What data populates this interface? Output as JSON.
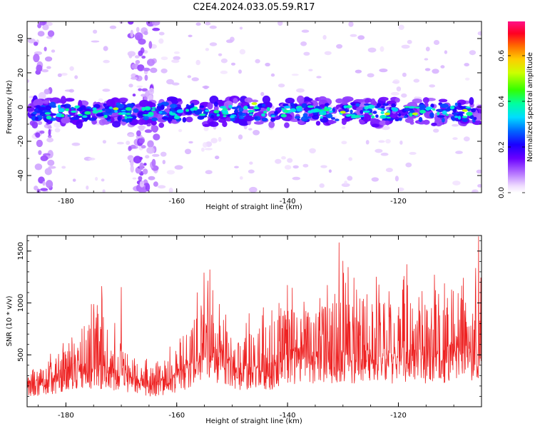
{
  "title": "C2E4.2024.033.05.59.R17",
  "chart_data": [
    {
      "type": "heatmap",
      "xlabel": "Height of straight line (km)",
      "ylabel": "Frequency (Hz)",
      "xlim": [
        -187,
        -105
      ],
      "ylim": [
        -50,
        50
      ],
      "x_ticks": [
        -180,
        -160,
        -140,
        -120
      ],
      "y_ticks": [
        -40,
        -20,
        0,
        20,
        40
      ],
      "band_center_hz": -3,
      "band_halfwidth_hz": 6,
      "colorbar": {
        "label": "Normalized spectral amplitude",
        "range": [
          0,
          0.75
        ],
        "ticks": [
          0.0,
          0.2,
          0.4,
          0.6
        ]
      },
      "vertical_streaks_km": [
        -184,
        -167,
        -165
      ]
    },
    {
      "type": "line",
      "xlabel": "Height of straight line (km)",
      "ylabel": "SNR (10 * v/v)",
      "xlim": [
        -187,
        -105
      ],
      "ylim": [
        0,
        1650
      ],
      "x_ticks": [
        -180,
        -160,
        -140,
        -120
      ],
      "y_ticks": [
        500,
        1000,
        1500
      ],
      "color": "#ee2222",
      "envelope": {
        "x": [
          -187,
          -183,
          -180,
          -177,
          -174,
          -171,
          -168,
          -165,
          -162,
          -160,
          -157,
          -155,
          -152,
          -149,
          -146,
          -143,
          -140,
          -137,
          -134,
          -131,
          -128,
          -125,
          -122,
          -119,
          -116,
          -113,
          -110,
          -107,
          -105
        ],
        "baseline": [
          180,
          200,
          280,
          300,
          290,
          260,
          220,
          180,
          190,
          250,
          320,
          420,
          380,
          300,
          280,
          300,
          380,
          400,
          360,
          380,
          390,
          380,
          400,
          420,
          400,
          400,
          420,
          440,
          460
        ],
        "peak": [
          350,
          500,
          700,
          900,
          1150,
          800,
          600,
          450,
          500,
          750,
          1050,
          1320,
          950,
          750,
          1000,
          1000,
          1200,
          1100,
          1150,
          1550,
          1250,
          1300,
          1250,
          1300,
          1200,
          1250,
          1200,
          1300,
          1640
        ]
      },
      "peaks": [
        [
          -173.5,
          1160
        ],
        [
          -170,
          1150
        ],
        [
          -154,
          1320
        ],
        [
          -140,
          1170
        ],
        [
          -130.7,
          1580
        ],
        [
          -124,
          1250
        ],
        [
          -118.5,
          1370
        ],
        [
          -113.5,
          1270
        ],
        [
          -105.5,
          1640
        ]
      ]
    }
  ]
}
